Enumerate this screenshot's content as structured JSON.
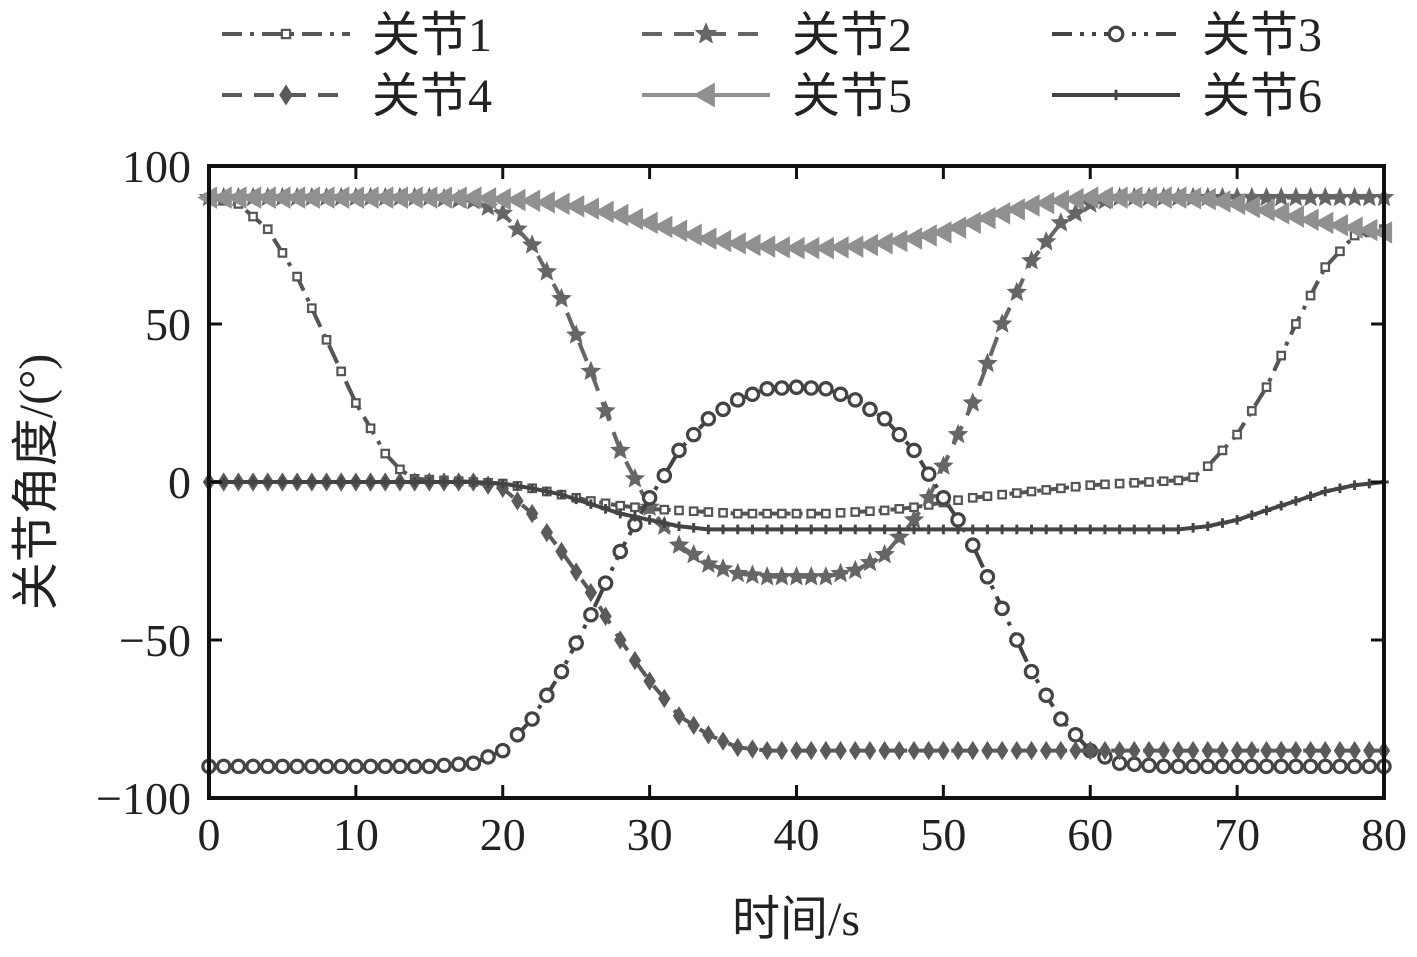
{
  "chart_data": {
    "type": "line",
    "xlabel": "时间/s",
    "ylabel": "关节角度/(°)",
    "xlim": [
      0,
      80
    ],
    "ylim": [
      -100,
      100
    ],
    "xticks": [
      0,
      10,
      20,
      30,
      40,
      50,
      60,
      70,
      80
    ],
    "yticks": [
      -100,
      -50,
      0,
      50,
      100
    ],
    "ytick_labels": [
      "−100",
      "−50",
      "0",
      "50",
      "100"
    ],
    "grid": false,
    "legend_position": "top, 3 columns, outside plot",
    "series": [
      {
        "name": "关节1",
        "color": "#555555",
        "marker": "square",
        "dash": "dash-dot",
        "x": [
          0,
          2,
          4,
          6,
          8,
          10,
          12,
          13,
          14,
          16,
          18,
          20,
          22,
          24,
          26,
          28,
          30,
          32,
          34,
          36,
          38,
          40,
          42,
          44,
          46,
          48,
          50,
          52,
          54,
          56,
          58,
          60,
          62,
          64,
          66,
          67,
          68,
          70,
          72,
          74,
          76,
          78,
          80
        ],
        "values": [
          90,
          88,
          80,
          65,
          45,
          25,
          9,
          4,
          1,
          0.5,
          0,
          -0.5,
          -2,
          -4,
          -6,
          -7.5,
          -8.5,
          -9,
          -9.5,
          -10,
          -10,
          -10,
          -10,
          -9.5,
          -9,
          -8,
          -6.5,
          -5,
          -4,
          -3,
          -2,
          -1,
          -0.5,
          0,
          0.5,
          1.5,
          5,
          15,
          30,
          50,
          68,
          78,
          80
        ]
      },
      {
        "name": "关节2",
        "color": "#666666",
        "marker": "star",
        "dash": "dash",
        "x": [
          0,
          5,
          10,
          15,
          18,
          20,
          22,
          24,
          26,
          28,
          30,
          31,
          32,
          34,
          36,
          38,
          40,
          42,
          44,
          46,
          48,
          49,
          50,
          52,
          54,
          56,
          58,
          60,
          62,
          65,
          70,
          75,
          80
        ],
        "values": [
          90,
          90,
          90,
          90,
          89,
          85,
          75,
          58,
          35,
          10,
          -8,
          -14,
          -20,
          -26,
          -29,
          -30,
          -30,
          -30,
          -28,
          -23,
          -12,
          -5,
          5,
          25,
          50,
          70,
          82,
          88,
          90,
          90,
          90,
          90,
          90
        ]
      },
      {
        "name": "关节3",
        "color": "#444444",
        "marker": "circle",
        "dash": "dash-dot-dot",
        "x": [
          0,
          5,
          10,
          15,
          18,
          20,
          22,
          24,
          26,
          28,
          30,
          31,
          32,
          34,
          36,
          38,
          40,
          42,
          44,
          46,
          48,
          50,
          51,
          52,
          54,
          56,
          58,
          60,
          62,
          65,
          70,
          75,
          80
        ],
        "values": [
          -90,
          -90,
          -90,
          -90,
          -89,
          -85,
          -75,
          -60,
          -42,
          -22,
          -5,
          2,
          10,
          20,
          26,
          29.5,
          30,
          29.5,
          26,
          20,
          10,
          -5,
          -12,
          -20,
          -40,
          -60,
          -75,
          -85,
          -89,
          -90,
          -90,
          -90,
          -90
        ]
      },
      {
        "name": "关节4",
        "color": "#5a5a5a",
        "marker": "diamond",
        "dash": "dash",
        "x": [
          0,
          5,
          10,
          15,
          18,
          20,
          22,
          24,
          26,
          28,
          30,
          32,
          34,
          36,
          38,
          40,
          45,
          50,
          55,
          60,
          65,
          70,
          75,
          80
        ],
        "values": [
          0,
          0,
          0,
          0,
          0,
          -2,
          -10,
          -22,
          -35,
          -50,
          -63,
          -74,
          -80,
          -84,
          -85,
          -85,
          -85,
          -85,
          -85,
          -85,
          -85,
          -85,
          -85,
          -85
        ]
      },
      {
        "name": "关节5",
        "color": "#909090",
        "marker": "triangle-left",
        "dash": "solid",
        "x": [
          0,
          10,
          15,
          18,
          20,
          22,
          24,
          26,
          28,
          30,
          32,
          34,
          36,
          38,
          40,
          42,
          44,
          46,
          48,
          50,
          52,
          54,
          56,
          58,
          60,
          62,
          64,
          66,
          68,
          70,
          72,
          74,
          76,
          78,
          80
        ],
        "values": [
          90,
          90,
          90,
          90,
          89.5,
          89,
          88,
          86.5,
          84.5,
          82,
          79.5,
          77,
          75.5,
          74.5,
          74,
          74,
          74.5,
          75.5,
          77,
          79,
          82,
          85,
          87.5,
          89,
          90,
          90,
          90,
          90,
          89.5,
          88,
          86,
          84,
          82,
          80.5,
          79
        ]
      },
      {
        "name": "关节6",
        "color": "#444444",
        "marker": "plus",
        "dash": "solid",
        "x": [
          0,
          5,
          10,
          15,
          18,
          20,
          22,
          24,
          26,
          28,
          30,
          32,
          34,
          36,
          38,
          40,
          45,
          50,
          55,
          60,
          65,
          66,
          68,
          70,
          72,
          74,
          76,
          78,
          80
        ],
        "values": [
          0,
          0,
          0,
          0,
          0,
          -0.5,
          -2,
          -4,
          -7,
          -10,
          -12,
          -14,
          -15,
          -15,
          -15,
          -15,
          -15,
          -15,
          -15,
          -15,
          -15,
          -15,
          -14,
          -12,
          -9,
          -6,
          -3,
          -1,
          0
        ]
      }
    ]
  }
}
